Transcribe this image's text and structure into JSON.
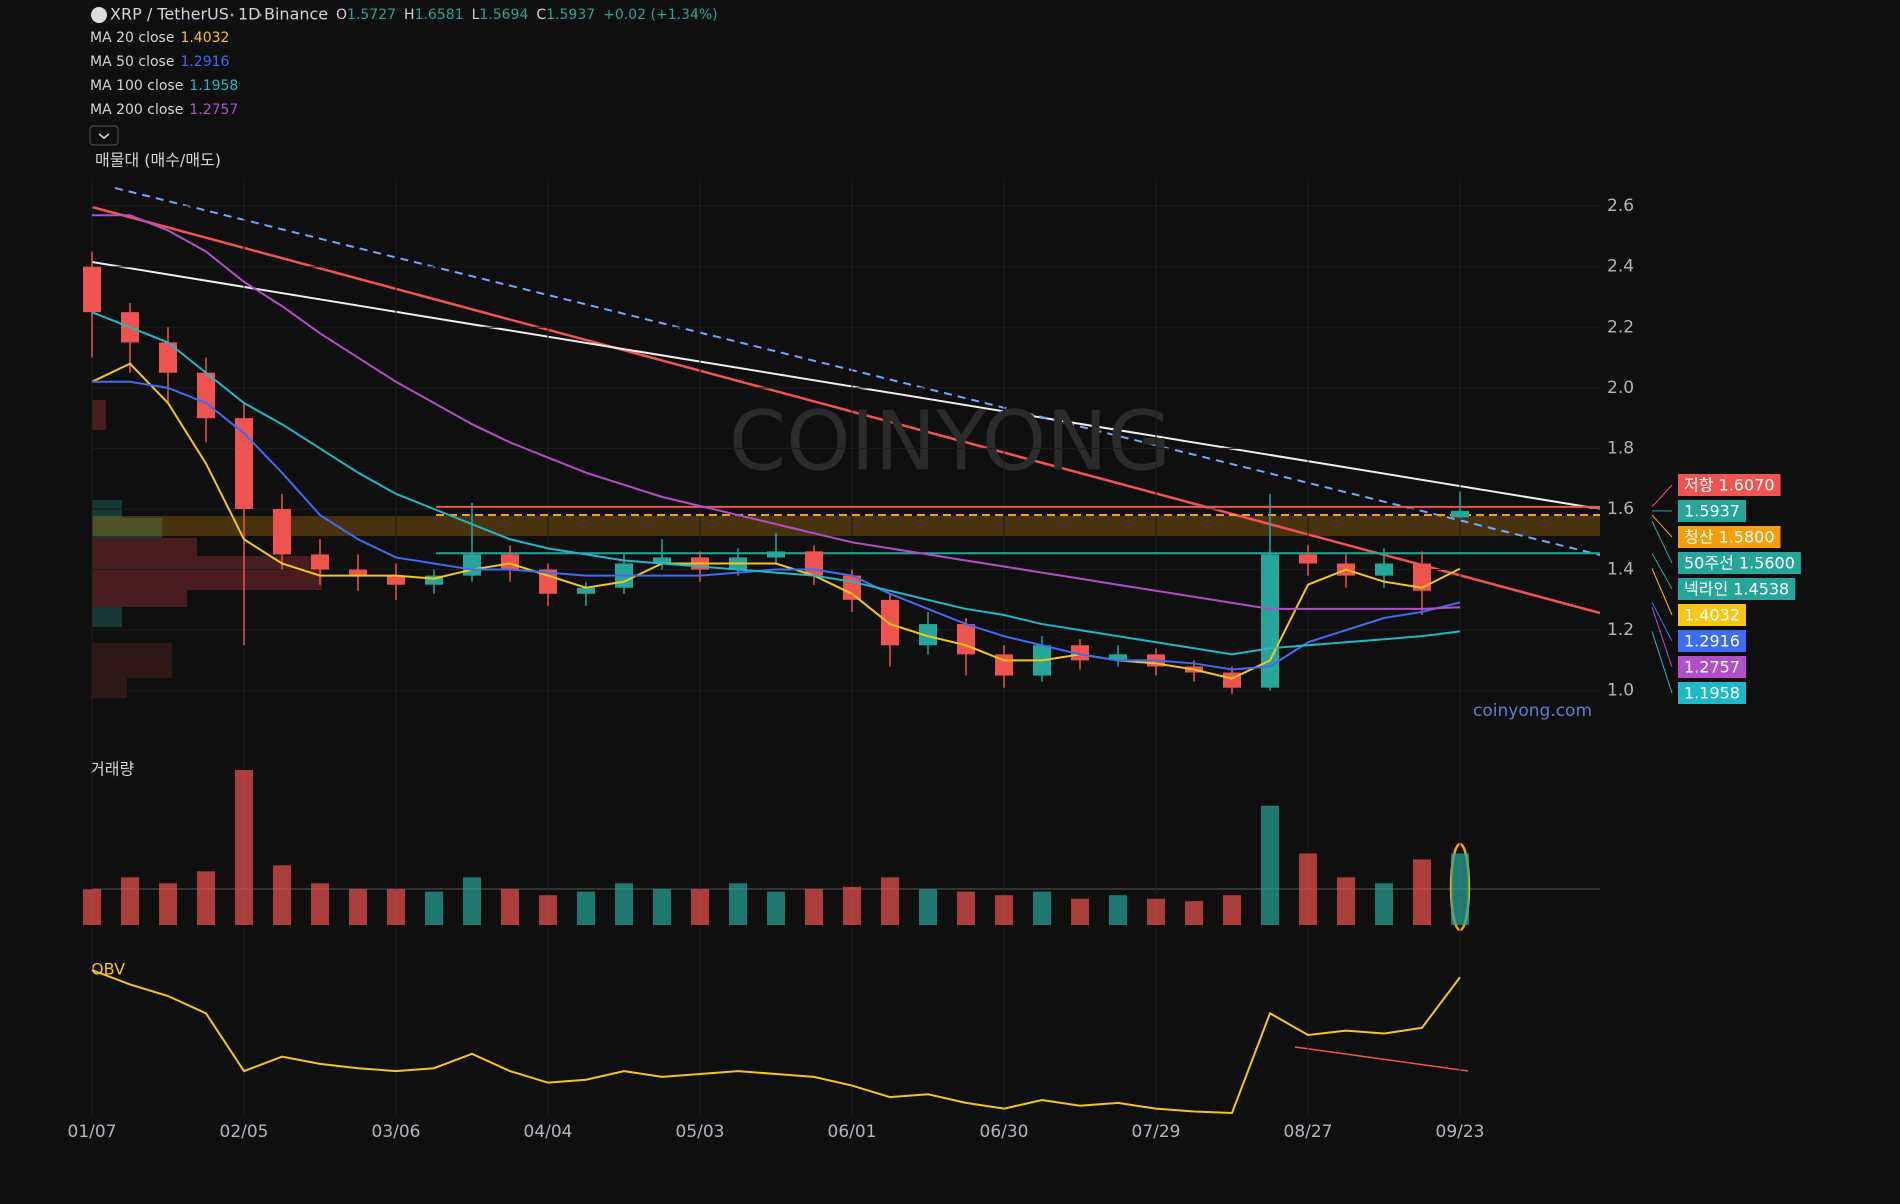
{
  "chart_data": {
    "type": "candlestick",
    "title": "XRP / TetherUS",
    "interval": "1D",
    "exchange": "Binance",
    "ohlc_legend": [
      {
        "key": "O",
        "value": 1.5727
      },
      {
        "key": "H",
        "value": 1.6581
      },
      {
        "key": "L",
        "value": 1.5694
      },
      {
        "key": "C",
        "value": 1.5937
      }
    ],
    "change_label": "+0.02 (+1.34%)",
    "profile_title": "매물대 (매수/매도)",
    "watermark": "COINYONG",
    "source": "coinyong.com",
    "up_color": "#26a69a",
    "down_color": "#ef5350",
    "categories": [
      "01/07",
      null,
      null,
      null,
      "02/05",
      null,
      null,
      null,
      "03/06",
      null,
      null,
      null,
      "04/04",
      null,
      null,
      null,
      "05/03",
      null,
      null,
      null,
      "06/01",
      null,
      null,
      null,
      "06/30",
      null,
      null,
      null,
      "07/29",
      null,
      null,
      null,
      "08/27",
      null,
      null,
      null,
      "09/23"
    ],
    "open": [
      2.4,
      2.25,
      2.15,
      2.05,
      1.9,
      1.6,
      1.45,
      1.4,
      1.38,
      1.35,
      1.38,
      1.45,
      1.4,
      1.32,
      1.34,
      1.42,
      1.44,
      1.4,
      1.44,
      1.46,
      1.38,
      1.3,
      1.15,
      1.22,
      1.12,
      1.05,
      1.15,
      1.1,
      1.12,
      1.08,
      1.06,
      1.01,
      1.45,
      1.42,
      1.38,
      1.42,
      1.5727
    ],
    "high": [
      2.45,
      2.28,
      2.2,
      2.1,
      1.95,
      1.65,
      1.5,
      1.45,
      1.42,
      1.4,
      1.62,
      1.48,
      1.42,
      1.36,
      1.45,
      1.5,
      1.46,
      1.47,
      1.52,
      1.48,
      1.4,
      1.32,
      1.26,
      1.24,
      1.15,
      1.18,
      1.17,
      1.15,
      1.14,
      1.1,
      1.08,
      1.65,
      1.48,
      1.45,
      1.47,
      1.46,
      1.6581
    ],
    "low": [
      2.1,
      2.05,
      1.95,
      1.82,
      1.15,
      1.4,
      1.35,
      1.33,
      1.3,
      1.32,
      1.36,
      1.36,
      1.28,
      1.28,
      1.32,
      1.4,
      1.36,
      1.38,
      1.42,
      1.35,
      1.26,
      1.08,
      1.12,
      1.05,
      1.01,
      1.03,
      1.07,
      1.08,
      1.05,
      1.03,
      0.99,
      1.0,
      1.38,
      1.34,
      1.34,
      1.25,
      1.5694
    ],
    "close": [
      2.25,
      2.15,
      2.05,
      1.9,
      1.6,
      1.45,
      1.4,
      1.38,
      1.35,
      1.38,
      1.45,
      1.4,
      1.32,
      1.34,
      1.42,
      1.44,
      1.4,
      1.44,
      1.46,
      1.38,
      1.3,
      1.15,
      1.22,
      1.12,
      1.05,
      1.15,
      1.1,
      1.12,
      1.08,
      1.06,
      1.01,
      1.45,
      1.42,
      1.38,
      1.42,
      1.33,
      1.5937
    ],
    "series": [
      {
        "name": "MA 20 close",
        "last": 1.4032,
        "color": "#f5c518",
        "values": [
          2.02,
          2.08,
          1.95,
          1.75,
          1.5,
          1.42,
          1.38,
          1.38,
          1.38,
          1.37,
          1.4,
          1.42,
          1.38,
          1.34,
          1.36,
          1.42,
          1.42,
          1.42,
          1.42,
          1.38,
          1.32,
          1.22,
          1.18,
          1.15,
          1.1,
          1.1,
          1.12,
          1.1,
          1.09,
          1.07,
          1.04,
          1.1,
          1.35,
          1.4,
          1.36,
          1.34,
          1.4032
        ]
      },
      {
        "name": "MA 50 close",
        "last": 1.2916,
        "color": "#3d6cf5",
        "values": [
          2.02,
          2.02,
          2.0,
          1.95,
          1.85,
          1.72,
          1.58,
          1.5,
          1.44,
          1.42,
          1.4,
          1.4,
          1.39,
          1.38,
          1.38,
          1.38,
          1.38,
          1.39,
          1.4,
          1.4,
          1.38,
          1.32,
          1.27,
          1.22,
          1.18,
          1.15,
          1.12,
          1.1,
          1.1,
          1.09,
          1.07,
          1.08,
          1.16,
          1.2,
          1.24,
          1.26,
          1.2916
        ]
      },
      {
        "name": "MA 100 close",
        "last": 1.1958,
        "color": "#1fb8c9",
        "values": [
          2.25,
          2.2,
          2.15,
          2.05,
          1.95,
          1.88,
          1.8,
          1.72,
          1.65,
          1.6,
          1.55,
          1.5,
          1.47,
          1.45,
          1.43,
          1.42,
          1.41,
          1.4,
          1.39,
          1.38,
          1.36,
          1.33,
          1.3,
          1.27,
          1.25,
          1.22,
          1.2,
          1.18,
          1.16,
          1.14,
          1.12,
          1.14,
          1.15,
          1.16,
          1.17,
          1.18,
          1.1958
        ]
      },
      {
        "name": "MA 200 close",
        "last": 1.2757,
        "color": "#b04fc7",
        "values": [
          2.57,
          2.57,
          2.52,
          2.45,
          2.35,
          2.27,
          2.18,
          2.1,
          2.02,
          1.95,
          1.88,
          1.82,
          1.77,
          1.72,
          1.68,
          1.64,
          1.61,
          1.58,
          1.55,
          1.52,
          1.49,
          1.47,
          1.45,
          1.43,
          1.41,
          1.39,
          1.37,
          1.35,
          1.33,
          1.31,
          1.29,
          1.27,
          1.27,
          1.27,
          1.27,
          1.27,
          1.2757
        ]
      }
    ],
    "ylim": [
      0.89,
      2.66
    ],
    "yticks": [
      {
        "value": 1,
        "label": "1.0"
      },
      1.2,
      1.4,
      1.6,
      1.8,
      {
        "value": 2,
        "label": "2.0"
      },
      2.2,
      2.4,
      2.6
    ],
    "grid": true,
    "price_tags": [
      {
        "label": "저항 1.6070",
        "value": 1.607,
        "color": "#f05350",
        "line_style": "solid"
      },
      {
        "label": "1.5937",
        "value": 1.5937,
        "color": "#26a69a"
      },
      {
        "label": "청산 1.5800",
        "value": 1.58,
        "color": "#f59e0b",
        "line_style": "dashed"
      },
      {
        "label": "50주선 1.5600",
        "value": 1.56,
        "color": "#26a69a"
      },
      {
        "label": "넥라인 1.4538",
        "value": 1.4538,
        "color": "#26a69a",
        "line_style": "solid"
      },
      {
        "label": "1.4032",
        "value": 1.4032,
        "color": "#f5c518"
      },
      {
        "label": "1.2916",
        "value": 1.2916,
        "color": "#3d6cf5"
      },
      {
        "label": "1.2757",
        "value": 1.2757,
        "color": "#b04fc7"
      },
      {
        "label": "1.1958",
        "value": 1.1958,
        "color": "#1fb8c9"
      }
    ],
    "volume": {
      "title": "거래량",
      "values": [
        30,
        40,
        35,
        45,
        130,
        50,
        35,
        30,
        30,
        28,
        40,
        30,
        25,
        28,
        35,
        30,
        30,
        35,
        28,
        30,
        32,
        40,
        30,
        28,
        25,
        28,
        22,
        25,
        22,
        20,
        25,
        100,
        60,
        40,
        35,
        55,
        60
      ]
    },
    "obv": {
      "title": "OBV",
      "color": "#f5c518",
      "values": [
        100,
        90,
        82,
        70,
        30,
        40,
        35,
        32,
        30,
        32,
        42,
        30,
        22,
        24,
        30,
        26,
        28,
        30,
        28,
        26,
        20,
        12,
        14,
        8,
        4,
        10,
        6,
        8,
        4,
        2,
        1,
        70,
        55,
        58,
        56,
        60,
        95
      ]
    }
  }
}
